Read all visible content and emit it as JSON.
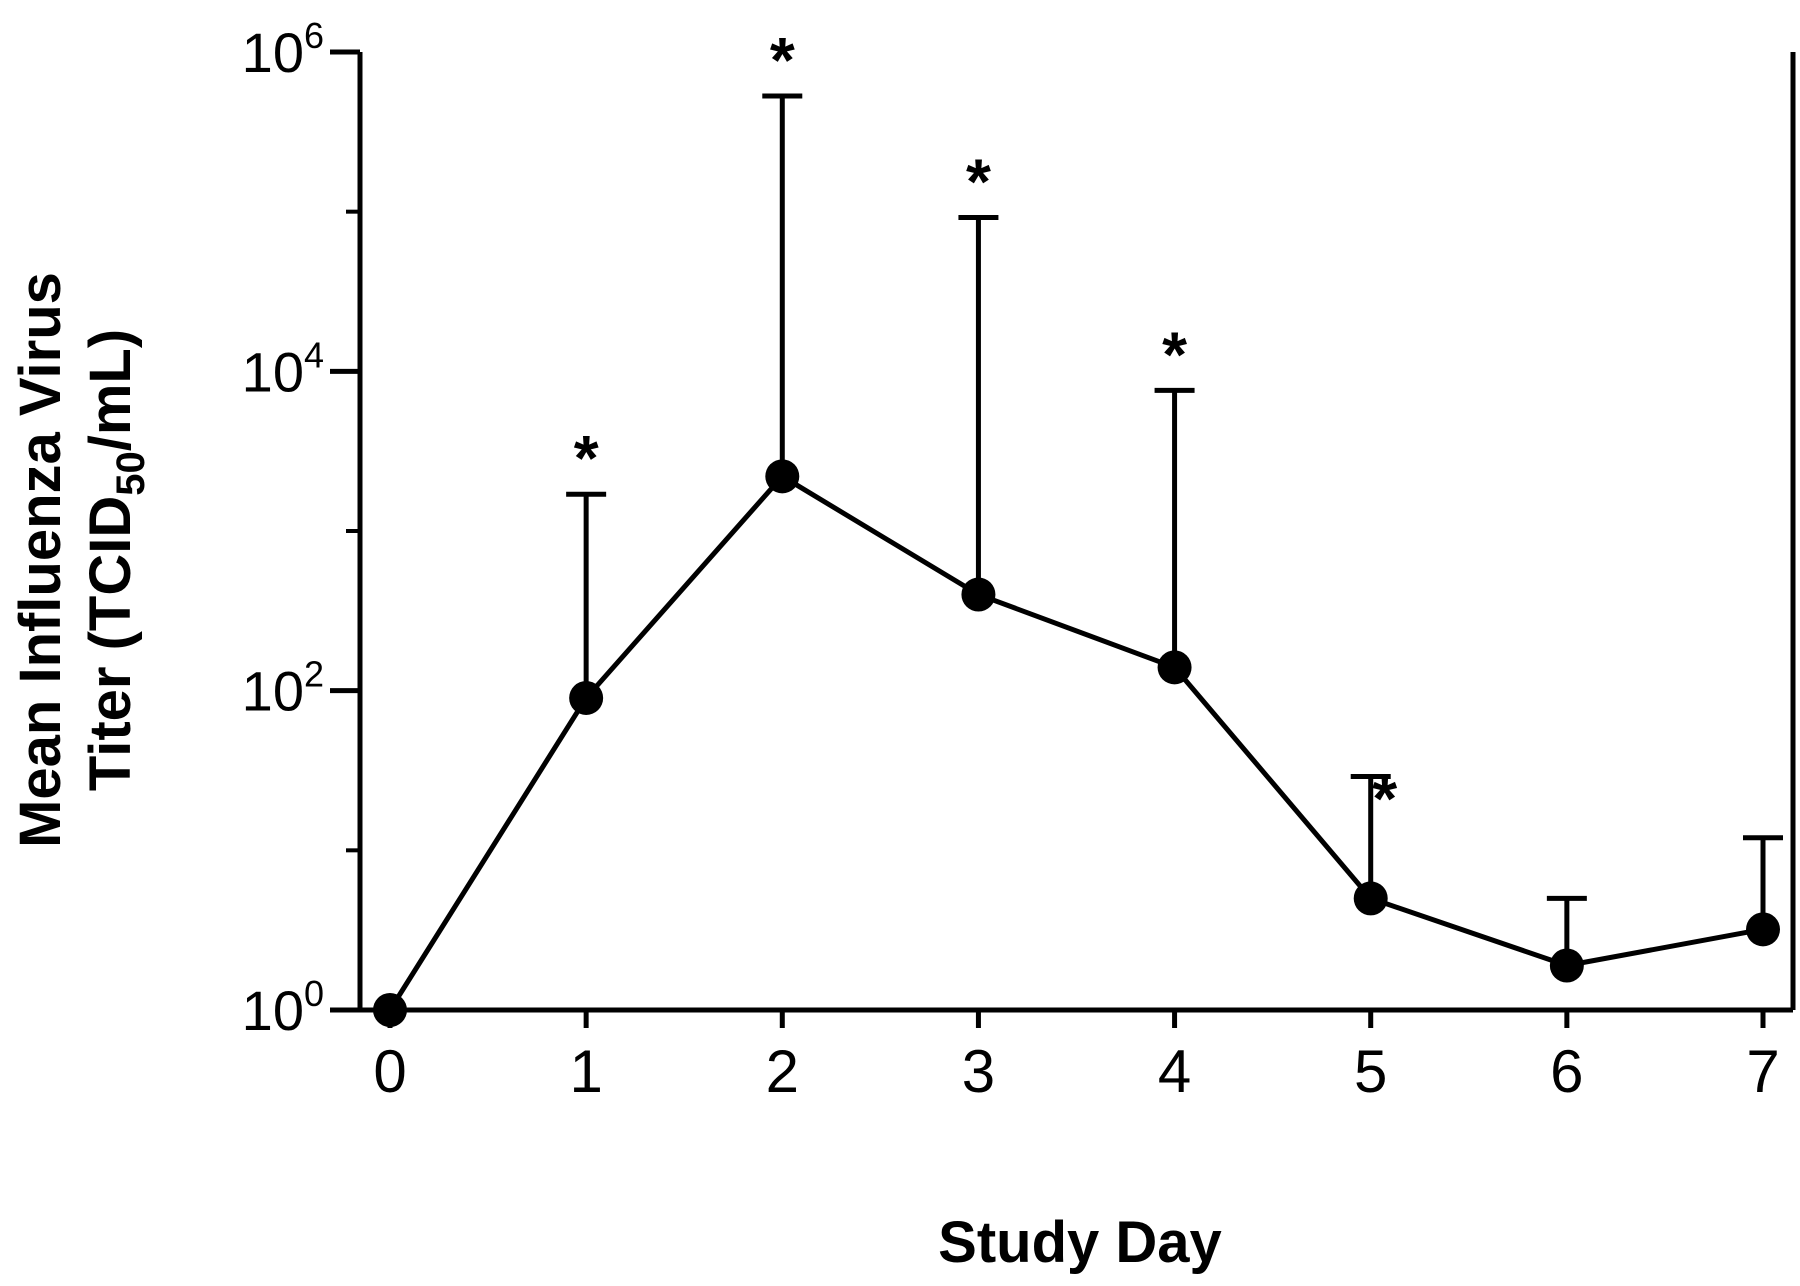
{
  "chart_data": {
    "type": "line",
    "xlabel": "Study Day",
    "ylabel_line1": "Mean Influenza Virus",
    "ylabel_line2_prefix": "Titer (TCID",
    "ylabel_line2_sub": "50",
    "ylabel_line2_suffix": "/mL)",
    "x_ticks": [
      "0",
      "1",
      "2",
      "3",
      "4",
      "5",
      "6",
      "7"
    ],
    "y_scale": "log10",
    "y_ticks": [
      {
        "base": "10",
        "exp": "0",
        "value": 1
      },
      {
        "base": "10",
        "exp": "2",
        "value": 100
      },
      {
        "base": "10",
        "exp": "4",
        "value": 10000
      },
      {
        "base": "10",
        "exp": "6",
        "value": 1000000
      }
    ],
    "ylim": [
      1,
      1000000
    ],
    "xlim": [
      0,
      7
    ],
    "significance_marker": "*",
    "series": [
      {
        "x": [
          0,
          1,
          2,
          3,
          4,
          5,
          6,
          7
        ],
        "y": [
          1,
          90,
          2200,
          400,
          140,
          5,
          1.9,
          3.2
        ],
        "error_upper": [
          null,
          1700,
          530000,
          92000,
          7600,
          29,
          5,
          12
        ],
        "significant": [
          false,
          true,
          true,
          true,
          true,
          true,
          false,
          false
        ]
      }
    ],
    "grid": false,
    "legend": "none",
    "color": "#000000"
  }
}
